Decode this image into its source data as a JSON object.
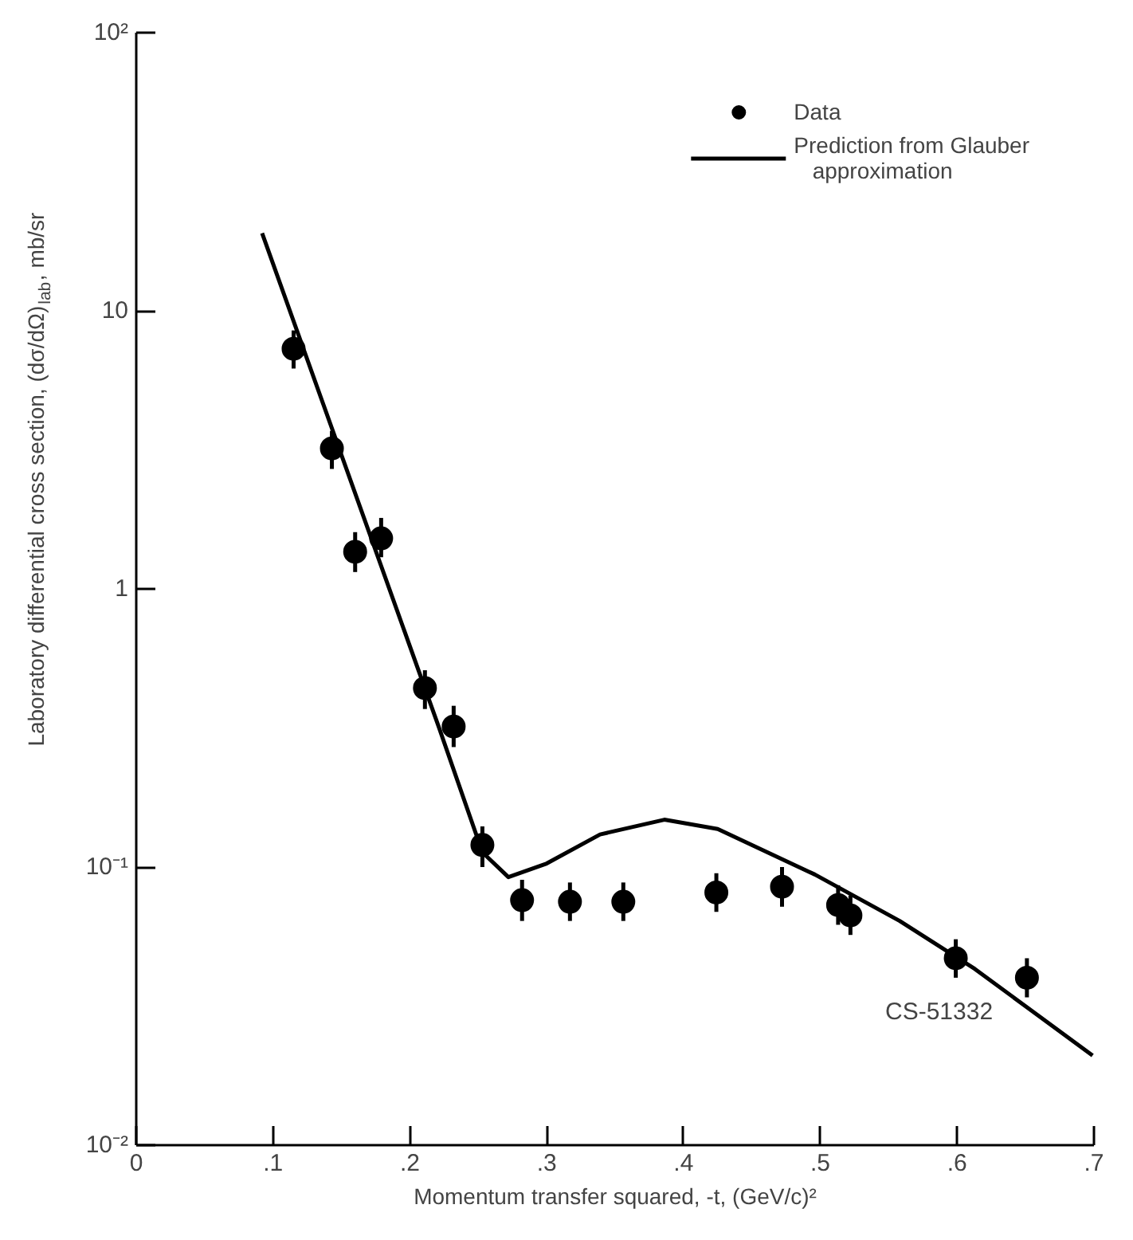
{
  "chart_data": {
    "type": "scatter",
    "xlabel": "Momentum transfer squared, -t, (GeV/c)²",
    "ylabel": "Laboratory differential cross section, (dσ/dΩ)$_{lab}$,  mb/sr",
    "log": "y",
    "grid": false,
    "legend": "top right",
    "xlim": [
      0,
      0.7
    ],
    "ylim": [
      0.01,
      100
    ],
    "xticks": [
      0,
      {
        "value": 0.1,
        "label": ".1"
      },
      {
        "value": 0.2,
        "label": ".2"
      },
      {
        "value": 0.3,
        "label": ".3"
      },
      {
        "value": 0.4,
        "label": ".4"
      },
      {
        "value": 0.5,
        "label": ".5"
      },
      {
        "value": 0.6,
        "label": ".6"
      },
      {
        "value": 0.7,
        "label": ".7"
      }
    ],
    "yticks": [
      {
        "value": 0.01,
        "label": "10⁻²"
      },
      {
        "value": 0.1,
        "label": "10⁻¹"
      },
      1,
      10,
      {
        "value": 100,
        "label": "10²"
      }
    ],
    "annotations": [
      "CS-51332"
    ],
    "series": [
      {
        "name": "Data",
        "marker": "circle",
        "color": "#000000",
        "x": [
          0.115,
          0.143,
          0.16,
          0.179,
          0.211,
          0.232,
          0.253,
          0.282,
          0.317,
          0.356,
          0.424,
          0.472,
          0.513,
          0.522,
          0.599,
          0.651
        ],
        "values": [
          7.3,
          3.2,
          1.36,
          1.52,
          0.44,
          0.32,
          0.12,
          0.076,
          0.075,
          0.075,
          0.081,
          0.085,
          0.073,
          0.067,
          0.047,
          0.04
        ],
        "errors": [
          [
            6.2,
            8.5
          ],
          [
            2.7,
            3.7
          ],
          [
            1.15,
            1.6
          ],
          [
            1.3,
            1.8
          ],
          [
            0.37,
            0.51
          ],
          [
            0.27,
            0.38
          ],
          [
            0.1,
            0.14
          ],
          [
            0.064,
            0.09
          ],
          [
            0.064,
            0.088
          ],
          [
            0.064,
            0.088
          ],
          [
            0.069,
            0.095
          ],
          [
            0.072,
            0.1
          ],
          [
            0.062,
            0.086
          ],
          [
            0.057,
            0.079
          ],
          [
            0.04,
            0.055
          ],
          [
            0.034,
            0.047
          ]
        ]
      },
      {
        "name": "Prediction from Glauber\n   approximation",
        "type": "line",
        "line_style": "solid",
        "color": "#000000",
        "x": [
          0.092,
          0.221,
          0.253,
          0.272,
          0.3,
          0.339,
          0.386,
          0.425,
          0.496,
          0.558,
          0.613,
          0.699
        ],
        "values": [
          19,
          0.32,
          0.113,
          0.092,
          0.103,
          0.131,
          0.148,
          0.137,
          0.094,
          0.064,
          0.043,
          0.021
        ]
      }
    ]
  }
}
